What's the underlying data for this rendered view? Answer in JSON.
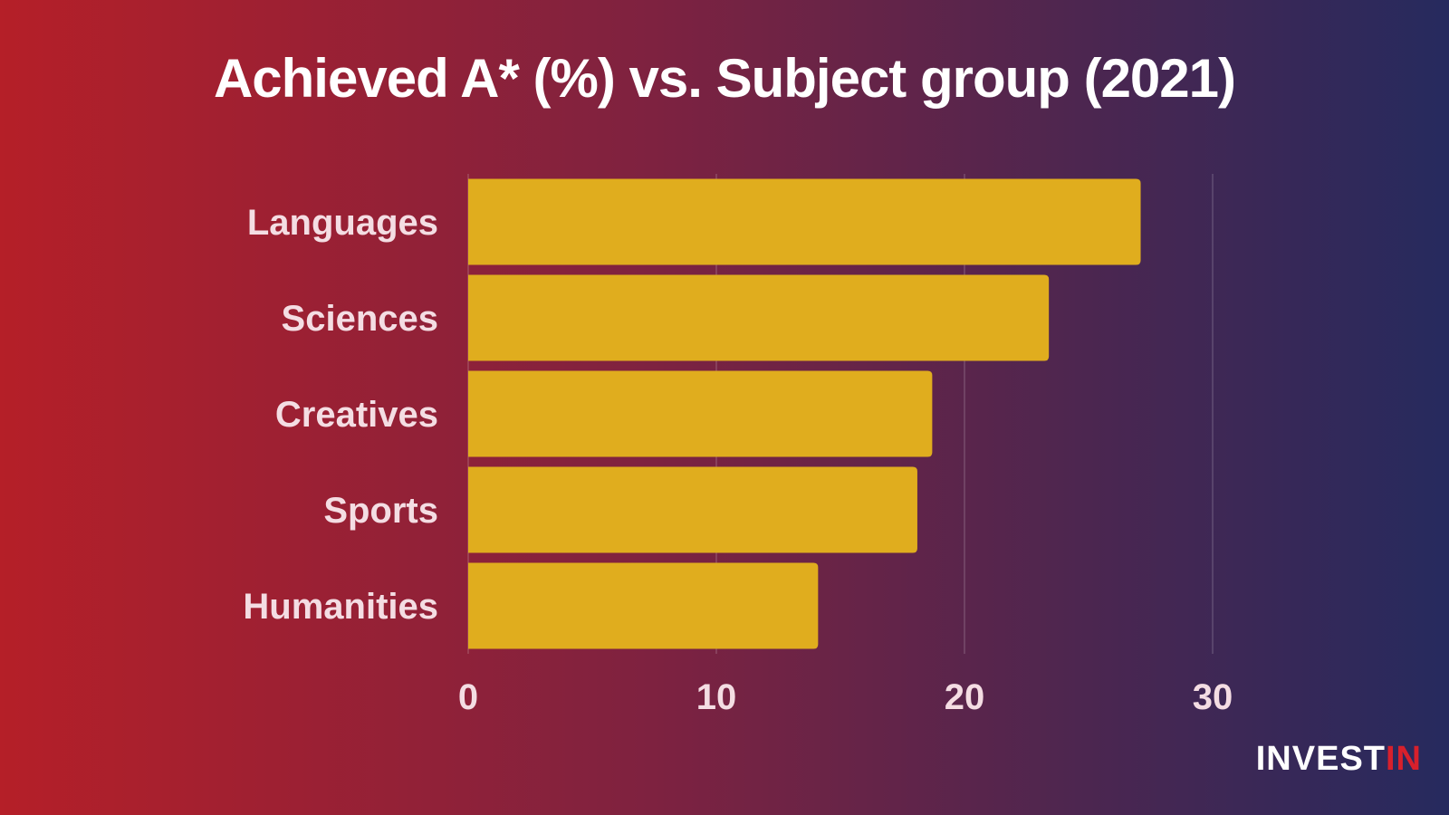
{
  "chart_data": {
    "type": "bar",
    "orientation": "horizontal",
    "title": "Achieved A* (%) vs. Subject group (2021)",
    "categories": [
      "Languages",
      "Sciences",
      "Creatives",
      "Sports",
      "Humanities"
    ],
    "values": [
      27.1,
      23.4,
      18.7,
      18.1,
      14.1
    ],
    "xlim": [
      0,
      30
    ],
    "xticks": [
      0,
      10,
      20,
      30
    ],
    "xlabel": "",
    "ylabel": "",
    "grid": true,
    "bar_color": "#e0ad1e"
  },
  "brand": {
    "logo_part1": "INVEST",
    "logo_part2": "IN",
    "color1": "#ffffff",
    "color2": "#d8202c"
  }
}
